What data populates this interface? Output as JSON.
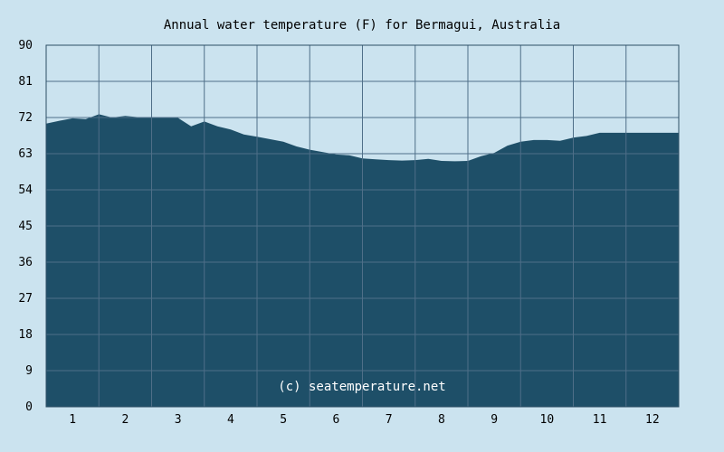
{
  "chart_data": {
    "type": "area",
    "title": "Annual water temperature (F) for Bermagui, Australia",
    "xlabel": "",
    "ylabel": "",
    "x_range": [
      0.5,
      12.5
    ],
    "ylim": [
      0,
      90
    ],
    "x_ticks": [
      "1",
      "2",
      "3",
      "4",
      "5",
      "6",
      "7",
      "8",
      "9",
      "10",
      "11",
      "12"
    ],
    "y_ticks": [
      0,
      9,
      18,
      27,
      36,
      45,
      54,
      63,
      72,
      81,
      90
    ],
    "grid": true,
    "x": [
      0.5,
      0.75,
      1.0,
      1.25,
      1.5,
      1.75,
      2.0,
      2.25,
      2.5,
      2.75,
      3.0,
      3.25,
      3.5,
      3.75,
      4.0,
      4.25,
      4.5,
      4.75,
      5.0,
      5.25,
      5.5,
      5.75,
      6.0,
      6.25,
      6.5,
      6.75,
      7.0,
      7.25,
      7.5,
      7.75,
      8.0,
      8.25,
      8.5,
      8.75,
      9.0,
      9.25,
      9.5,
      9.75,
      10.0,
      10.25,
      10.5,
      10.75,
      11.0,
      11.25,
      11.5,
      11.75,
      12.0,
      12.25,
      12.5
    ],
    "values": [
      70.5,
      71.2,
      71.8,
      71.6,
      72.8,
      72.0,
      72.4,
      72.1,
      72.0,
      72.1,
      71.9,
      69.8,
      71.0,
      69.8,
      69.0,
      67.8,
      67.2,
      66.6,
      66.0,
      64.8,
      64.0,
      63.4,
      62.8,
      62.6,
      61.8,
      61.6,
      61.4,
      61.3,
      61.4,
      61.7,
      61.2,
      61.1,
      61.2,
      62.4,
      63.2,
      65.0,
      66.0,
      66.4,
      66.4,
      66.2,
      67.0,
      67.4,
      68.2,
      68.2,
      68.2,
      68.2,
      68.2,
      68.2,
      68.2
    ],
    "colors": {
      "background": "#cbe3ef",
      "area": "#1e4f68",
      "grid": "#4f6f88",
      "axis": "#2d4f66"
    }
  },
  "watermark": "(c) seatemperature.net"
}
